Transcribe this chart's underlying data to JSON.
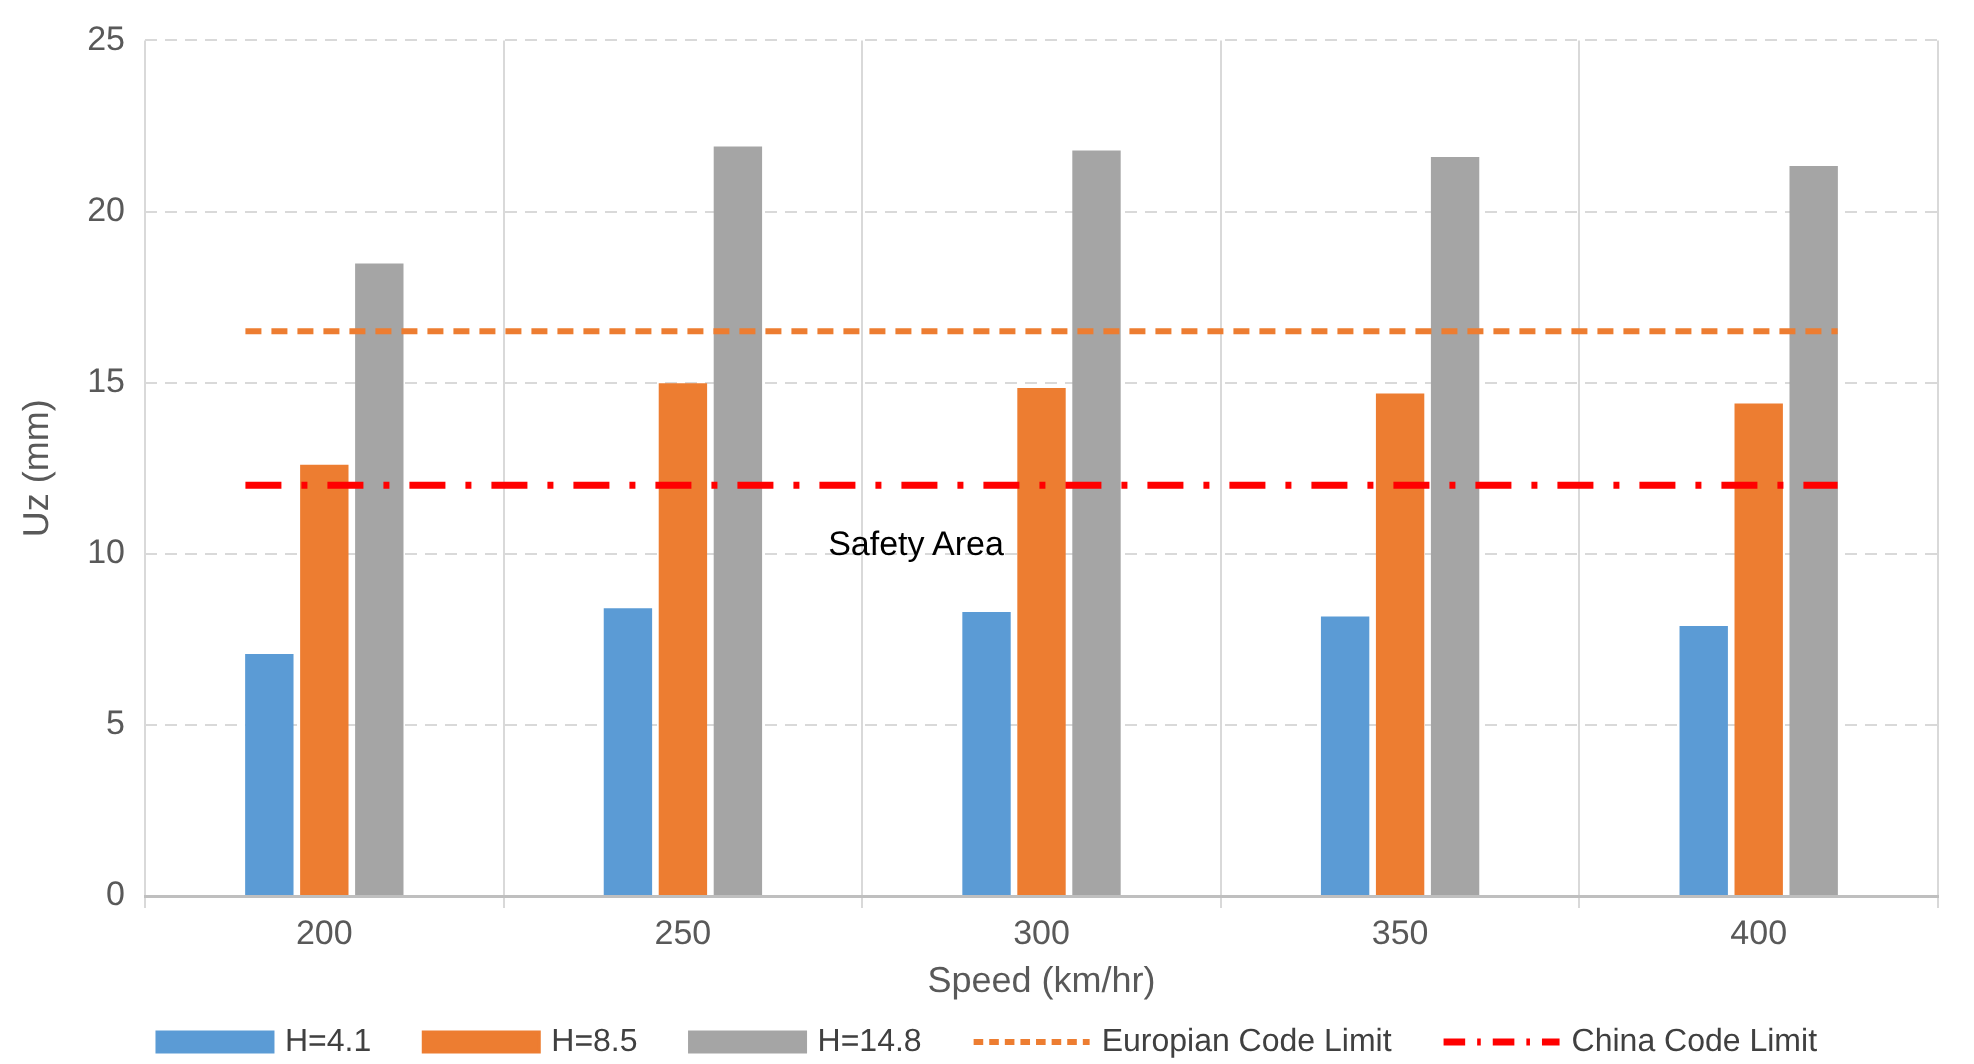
{
  "chart_data": {
    "type": "bar",
    "xlabel": "Speed (km/hr)",
    "ylabel": "Uz (mm)",
    "categories": [
      "200",
      "250",
      "300",
      "350",
      "400"
    ],
    "series": [
      {
        "name": "H=4.1",
        "color": "#5b9bd5",
        "values": [
          7.07,
          8.41,
          8.3,
          8.17,
          7.89
        ]
      },
      {
        "name": "H=8.5",
        "color": "#ed7d31",
        "values": [
          12.6,
          14.98,
          14.84,
          14.68,
          14.39
        ]
      },
      {
        "name": "H=14.8",
        "color": "#a5a5a5",
        "values": [
          18.48,
          21.9,
          21.78,
          21.59,
          21.33
        ]
      }
    ],
    "ylim": [
      0,
      25
    ],
    "yticks": [
      0,
      5,
      10,
      15,
      20,
      25
    ],
    "grid": true,
    "legend": "bottom",
    "ref_lines": [
      {
        "axis": "y",
        "value": 16.5,
        "label": "Europian Code Limit",
        "color": "#ed7d31",
        "line_style": "dashed"
      },
      {
        "axis": "y",
        "value": 12,
        "label": "China Code Limit",
        "color": "#ff0000",
        "line_style": "dashdot"
      }
    ],
    "annotations": [
      "Safety Area"
    ]
  }
}
